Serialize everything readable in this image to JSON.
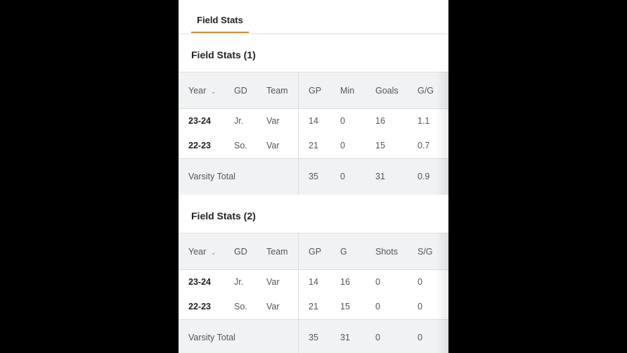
{
  "tabs": [
    {
      "label": "Field Stats",
      "active": true
    }
  ],
  "accent": "#c8913a",
  "sections": [
    {
      "title": "Field Stats (1)",
      "columns": [
        "Year",
        "GD",
        "Team",
        "GP",
        "Min",
        "Goals",
        "G/G"
      ],
      "rows": [
        [
          "23-24",
          "Jr.",
          "Var",
          "14",
          "0",
          "16",
          "1.1"
        ],
        [
          "22-23",
          "So.",
          "Var",
          "21",
          "0",
          "15",
          "0.7"
        ]
      ],
      "total": {
        "label": "Varsity Total",
        "values": [
          "35",
          "0",
          "31",
          "0.9"
        ]
      }
    },
    {
      "title": "Field Stats (2)",
      "columns": [
        "Year",
        "GD",
        "Team",
        "GP",
        "G",
        "Shots",
        "S/G"
      ],
      "rows": [
        [
          "23-24",
          "Jr.",
          "Var",
          "14",
          "16",
          "0",
          "0"
        ],
        [
          "22-23",
          "So.",
          "Var",
          "21",
          "15",
          "0",
          "0"
        ]
      ],
      "total": {
        "label": "Varsity Total",
        "values": [
          "35",
          "31",
          "0",
          "0"
        ]
      }
    }
  ]
}
